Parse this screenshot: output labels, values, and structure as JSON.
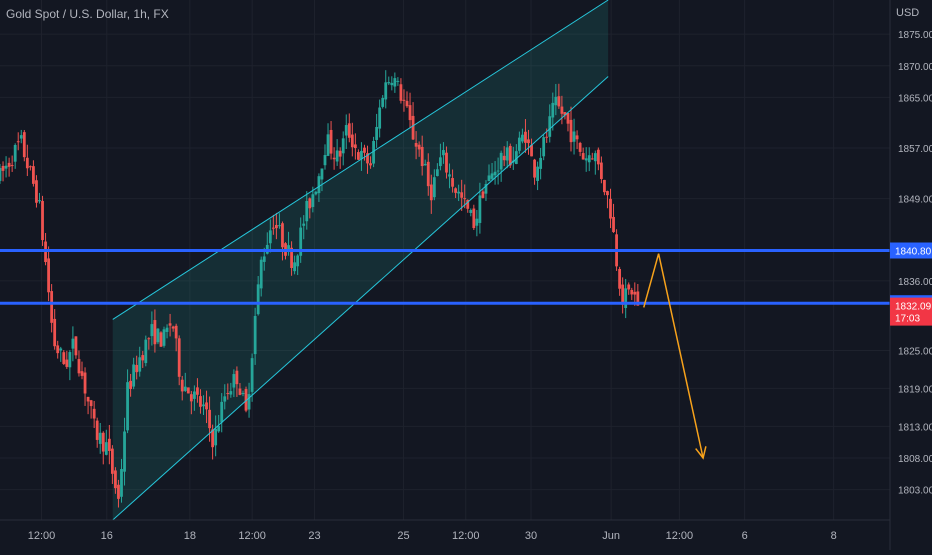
{
  "chart_data": {
    "type": "candlestick",
    "title": "Gold Spot / U.S. Dollar, 1h, FX",
    "currency": "USD",
    "y_ticks": [
      1803,
      1808,
      1813,
      1819,
      1825,
      1836,
      1849,
      1857,
      1865,
      1870,
      1875
    ],
    "y_tick_labels": [
      "1803.00",
      "1808.00",
      "1813.00",
      "1819.00",
      "1825.00",
      "1836.00",
      "1849.00",
      "1857.00",
      "1865.00",
      "1870.00",
      "1875.00"
    ],
    "ylim": [
      1798.2,
      1880.4
    ],
    "x_ticks": [
      {
        "label": "12:00",
        "index": 14
      },
      {
        "label": "16",
        "index": 36
      },
      {
        "label": "18",
        "index": 64
      },
      {
        "label": "12:00",
        "index": 85
      },
      {
        "label": "23",
        "index": 106
      },
      {
        "label": "25",
        "index": 136
      },
      {
        "label": "12:00",
        "index": 157
      },
      {
        "label": "30",
        "index": 179
      },
      {
        "label": "Jun",
        "index": 206
      },
      {
        "label": "12:00",
        "index": 229
      },
      {
        "label": "6",
        "index": 251
      },
      {
        "label": "8",
        "index": 281
      }
    ],
    "x_range": [
      0,
      300
    ],
    "candle_count": 211,
    "close_path": [
      [
        0,
        1852.5
      ],
      [
        3,
        1854.8
      ],
      [
        7,
        1858.0
      ],
      [
        10,
        1853.2
      ],
      [
        13,
        1848.7
      ],
      [
        16,
        1836.2
      ],
      [
        18,
        1826.4
      ],
      [
        22,
        1822.7
      ],
      [
        25,
        1826.1
      ],
      [
        29,
        1818.4
      ],
      [
        32,
        1812.2
      ],
      [
        36,
        1809.8
      ],
      [
        40,
        1801.2
      ],
      [
        43,
        1818.8
      ],
      [
        47,
        1823.8
      ],
      [
        51,
        1827.9
      ],
      [
        55,
        1826.6
      ],
      [
        58,
        1829.9
      ],
      [
        61,
        1820.1
      ],
      [
        65,
        1818.0
      ],
      [
        69,
        1815.5
      ],
      [
        72,
        1810.5
      ],
      [
        76,
        1818.4
      ],
      [
        80,
        1821.0
      ],
      [
        83,
        1814.7
      ],
      [
        86,
        1830.3
      ],
      [
        88,
        1838.9
      ],
      [
        92,
        1845.8
      ],
      [
        96,
        1841.6
      ],
      [
        99,
        1838.9
      ],
      [
        103,
        1846.6
      ],
      [
        107,
        1852.0
      ],
      [
        110,
        1858.3
      ],
      [
        114,
        1855.2
      ],
      [
        117,
        1860.1
      ],
      [
        121,
        1855.8
      ],
      [
        125,
        1854.6
      ],
      [
        129,
        1866.0
      ],
      [
        132,
        1868.8
      ],
      [
        136,
        1864.5
      ],
      [
        139,
        1859.3
      ],
      [
        142,
        1855.8
      ],
      [
        145,
        1849.6
      ],
      [
        149,
        1855.9
      ],
      [
        152,
        1852.0
      ],
      [
        156,
        1848.4
      ],
      [
        160,
        1845.0
      ],
      [
        163,
        1850.9
      ],
      [
        166,
        1852.7
      ],
      [
        169,
        1855.6
      ],
      [
        173,
        1855.5
      ],
      [
        177,
        1859.6
      ],
      [
        180,
        1853.4
      ],
      [
        184,
        1858.5
      ],
      [
        187,
        1863.8
      ],
      [
        190,
        1862.3
      ],
      [
        193,
        1858.9
      ],
      [
        197,
        1855.4
      ],
      [
        200,
        1856.6
      ],
      [
        203,
        1852.4
      ],
      [
        206,
        1846.7
      ],
      [
        208,
        1838.7
      ],
      [
        210,
        1833.0
      ],
      [
        213,
        1834.6
      ],
      [
        215,
        1832.1
      ]
    ],
    "price_lines": [
      {
        "label": "1840.80",
        "value": 1840.8,
        "color": "#2962ff"
      },
      {
        "label": "1832.47",
        "value": 1832.47,
        "color": "#2962ff"
      }
    ],
    "last_price": {
      "label": "1832.09",
      "countdown": "17:03",
      "value": 1832.09,
      "color": "#f23645"
    },
    "channel": {
      "lower_start": {
        "index": 38,
        "price": 1798.2
      },
      "lower_end": {
        "index": 205,
        "price": 1868.3
      },
      "upper_start": {
        "index": 38,
        "price": 1829.9
      },
      "upper_end": {
        "index": 205,
        "price": 1880.4
      },
      "fill_start_index": 38,
      "fill_end_index": 205
    },
    "projection": {
      "color": "#f7a21b",
      "points": [
        {
          "index": 217,
          "price": 1831.8
        },
        {
          "index": 222,
          "price": 1840.3
        },
        {
          "index": 237,
          "price": 1808.0
        }
      ]
    },
    "colors": {
      "background": "#131722",
      "up": "#26a69a",
      "down": "#ef5350",
      "grid": "#1e222d",
      "text": "#b2b5be",
      "axis_line": "#2a2e39",
      "channel_line": "#26c6da",
      "channel_fill": "rgba(38, 166, 154, 0.16)"
    }
  }
}
